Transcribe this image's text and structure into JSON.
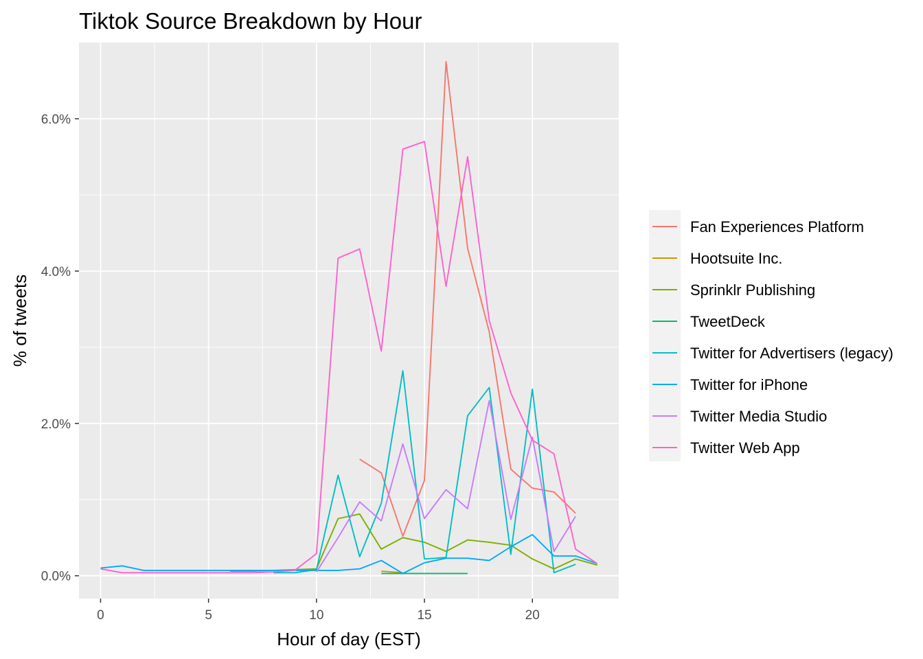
{
  "chart_data": {
    "type": "line",
    "title": "Tiktok Source Breakdown by Hour",
    "xlabel": "Hour of day (EST)",
    "ylabel": "% of tweets",
    "xlim": [
      -1.0,
      24.0
    ],
    "ylim": [
      -0.3,
      7.0
    ],
    "x_ticks": [
      0,
      5,
      10,
      15,
      20
    ],
    "x_tick_labels": [
      "0",
      "5",
      "10",
      "15",
      "20"
    ],
    "y_ticks": [
      0,
      2,
      4,
      6
    ],
    "y_tick_labels": [
      "0.0%",
      "2.0%",
      "4.0%",
      "6.0%"
    ],
    "grid": true,
    "legend_position": "right",
    "series": [
      {
        "name": "Fan Experiences Platform",
        "color": "#F8766D",
        "x": [
          12,
          13,
          14,
          15,
          16,
          17,
          18,
          19,
          20,
          21,
          22
        ],
        "y": [
          1.53,
          1.35,
          0.52,
          1.25,
          6.75,
          4.3,
          3.2,
          1.4,
          1.15,
          1.1,
          0.82
        ]
      },
      {
        "name": "Hootsuite Inc.",
        "color": "#CD9600",
        "x": [
          13,
          14
        ],
        "y": [
          0.06,
          0.04
        ]
      },
      {
        "name": "Sprinklr Publishing",
        "color": "#7CAE00",
        "x": [
          6,
          7,
          8,
          9,
          10,
          11,
          12,
          13,
          14,
          15,
          16,
          17,
          18,
          19,
          20,
          21,
          22,
          23
        ],
        "y": [
          0.06,
          0.06,
          0.07,
          0.08,
          0.09,
          0.75,
          0.81,
          0.35,
          0.5,
          0.44,
          0.32,
          0.47,
          0.44,
          0.4,
          0.22,
          0.09,
          0.22,
          0.14
        ]
      },
      {
        "name": "TweetDeck",
        "color": "#00BE67",
        "x": [
          13,
          14,
          15,
          16,
          17
        ],
        "y": [
          0.03,
          0.03,
          0.03,
          0.03,
          0.03
        ]
      },
      {
        "name": "Twitter for Advertisers (legacy)",
        "color": "#00BFC4",
        "x": [
          8,
          9,
          10,
          11,
          12,
          13,
          14,
          15,
          16,
          17,
          18,
          19,
          20,
          21,
          22
        ],
        "y": [
          0.04,
          0.04,
          0.08,
          1.32,
          0.25,
          0.95,
          2.69,
          0.22,
          0.24,
          2.1,
          2.47,
          0.28,
          2.45,
          0.04,
          0.15
        ]
      },
      {
        "name": "Twitter for iPhone",
        "color": "#00A9FF",
        "x": [
          0,
          1,
          2,
          3,
          4,
          5,
          6,
          7,
          8,
          9,
          10,
          11,
          12,
          13,
          14,
          15,
          16,
          17,
          18,
          19,
          20,
          21,
          22,
          23
        ],
        "y": [
          0.1,
          0.13,
          0.07,
          0.07,
          0.07,
          0.07,
          0.07,
          0.07,
          0.07,
          0.07,
          0.07,
          0.07,
          0.09,
          0.2,
          0.03,
          0.17,
          0.23,
          0.23,
          0.2,
          0.38,
          0.54,
          0.26,
          0.26,
          0.16
        ]
      },
      {
        "name": "Twitter Media Studio",
        "color": "#C77CFF",
        "x": [
          10,
          11,
          12,
          13,
          14,
          15,
          16,
          17,
          18,
          19,
          20,
          21,
          22
        ],
        "y": [
          0.05,
          0.5,
          0.97,
          0.72,
          1.73,
          0.75,
          1.13,
          0.88,
          2.3,
          0.74,
          1.82,
          0.32,
          0.78
        ]
      },
      {
        "name": "Twitter Web App",
        "color": "#FF61CC",
        "x": [
          0,
          1,
          2,
          3,
          4,
          5,
          6,
          7,
          8,
          9,
          10,
          11,
          12,
          13,
          14,
          15,
          16,
          17,
          18,
          19,
          20,
          21,
          22,
          23
        ],
        "y": [
          0.09,
          0.04,
          0.04,
          0.04,
          0.04,
          0.04,
          0.04,
          0.04,
          0.05,
          0.07,
          0.29,
          4.17,
          4.29,
          2.95,
          5.6,
          5.7,
          3.8,
          5.5,
          3.35,
          2.4,
          1.78,
          1.6,
          0.35,
          0.16
        ]
      }
    ]
  }
}
